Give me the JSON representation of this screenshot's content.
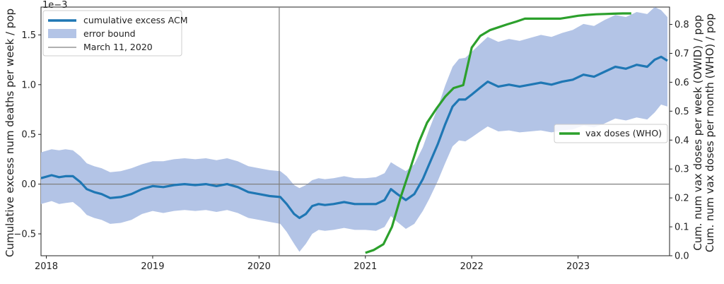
{
  "chart_data": {
    "type": "line",
    "colors": {
      "excess": "#1f77b4",
      "band": "#b3c4e6",
      "vax": "#2ca02c",
      "reference": "#808080"
    },
    "x_axis": {
      "ticks": [
        2018,
        2019,
        2020,
        2021,
        2022,
        2023
      ],
      "tick_labels": [
        "2018",
        "2019",
        "2020",
        "2021",
        "2022",
        "2023"
      ],
      "range": [
        2017.95,
        2023.86
      ]
    },
    "y_axis_left": {
      "label": "Cumulative excess num deaths per week / pop",
      "scale_label": "1e−3",
      "range": [
        -0.72,
        1.78
      ],
      "ticks": [
        -0.5,
        0.0,
        0.5,
        1.0,
        1.5
      ],
      "tick_labels": [
        "−0.5",
        "0.0",
        "0.5",
        "1.0",
        "1.5"
      ]
    },
    "y_axis_right": {
      "label_line1": "Cum. num vax doses per week (OWID) / pop",
      "label_line2": "Cum. num vax doses per month (WHO) / pop",
      "range": [
        0.0,
        0.86
      ],
      "ticks": [
        0.0,
        0.1,
        0.2,
        0.3,
        0.4,
        0.5,
        0.6,
        0.7,
        0.8
      ],
      "tick_labels": [
        "0.0",
        "0.1",
        "0.2",
        "0.3",
        "0.4",
        "0.5",
        "0.6",
        "0.7",
        "0.8"
      ]
    },
    "zero_line": 0,
    "reference_line": {
      "x": 2020.19,
      "label": "March 11, 2020"
    },
    "legend_left": {
      "placement": "top-left",
      "entries": [
        "cumulative excess ACM",
        "error bound",
        "March 11, 2020"
      ]
    },
    "legend_right": {
      "placement": "center-right",
      "entries": [
        "vax doses (WHO)"
      ]
    },
    "series": [
      {
        "name": "cumulative excess ACM",
        "axis": "left",
        "x": [
          2017.95,
          2018.05,
          2018.12,
          2018.18,
          2018.25,
          2018.32,
          2018.38,
          2018.45,
          2018.52,
          2018.6,
          2018.7,
          2018.8,
          2018.9,
          2019.0,
          2019.1,
          2019.2,
          2019.3,
          2019.4,
          2019.5,
          2019.6,
          2019.7,
          2019.8,
          2019.9,
          2020.0,
          2020.1,
          2020.2,
          2020.26,
          2020.33,
          2020.38,
          2020.44,
          2020.5,
          2020.56,
          2020.62,
          2020.7,
          2020.8,
          2020.9,
          2021.0,
          2021.1,
          2021.18,
          2021.24,
          2021.3,
          2021.38,
          2021.46,
          2021.54,
          2021.6,
          2021.68,
          2021.75,
          2021.82,
          2021.88,
          2021.94,
          2022.0,
          2022.08,
          2022.15,
          2022.25,
          2022.35,
          2022.45,
          2022.55,
          2022.65,
          2022.75,
          2022.85,
          2022.95,
          2023.05,
          2023.15,
          2023.25,
          2023.35,
          2023.45,
          2023.55,
          2023.65,
          2023.72,
          2023.78,
          2023.84
        ],
        "y": [
          0.06,
          0.09,
          0.07,
          0.08,
          0.08,
          0.02,
          -0.05,
          -0.08,
          -0.1,
          -0.14,
          -0.13,
          -0.1,
          -0.05,
          -0.02,
          -0.03,
          -0.01,
          0.0,
          -0.01,
          0.0,
          -0.02,
          0.0,
          -0.03,
          -0.08,
          -0.1,
          -0.12,
          -0.13,
          -0.2,
          -0.3,
          -0.34,
          -0.3,
          -0.22,
          -0.2,
          -0.21,
          -0.2,
          -0.18,
          -0.2,
          -0.2,
          -0.2,
          -0.16,
          -0.05,
          -0.1,
          -0.16,
          -0.1,
          0.05,
          0.2,
          0.4,
          0.6,
          0.78,
          0.85,
          0.85,
          0.9,
          0.97,
          1.03,
          0.98,
          1.0,
          0.98,
          1.0,
          1.02,
          1.0,
          1.03,
          1.05,
          1.1,
          1.08,
          1.13,
          1.18,
          1.16,
          1.2,
          1.18,
          1.25,
          1.28,
          1.24
        ]
      },
      {
        "name": "error bound",
        "axis": "left",
        "x": [
          2017.95,
          2018.05,
          2018.12,
          2018.18,
          2018.25,
          2018.32,
          2018.38,
          2018.45,
          2018.52,
          2018.6,
          2018.7,
          2018.8,
          2018.9,
          2019.0,
          2019.1,
          2019.2,
          2019.3,
          2019.4,
          2019.5,
          2019.6,
          2019.7,
          2019.8,
          2019.9,
          2020.0,
          2020.1,
          2020.2,
          2020.26,
          2020.33,
          2020.38,
          2020.44,
          2020.5,
          2020.56,
          2020.62,
          2020.7,
          2020.8,
          2020.9,
          2021.0,
          2021.1,
          2021.18,
          2021.24,
          2021.3,
          2021.38,
          2021.46,
          2021.54,
          2021.6,
          2021.68,
          2021.75,
          2021.82,
          2021.88,
          2021.94,
          2022.0,
          2022.08,
          2022.15,
          2022.25,
          2022.35,
          2022.45,
          2022.55,
          2022.65,
          2022.75,
          2022.85,
          2022.95,
          2023.05,
          2023.15,
          2023.25,
          2023.35,
          2023.45,
          2023.55,
          2023.65,
          2023.72,
          2023.78,
          2023.84
        ],
        "upper": [
          0.32,
          0.35,
          0.34,
          0.35,
          0.34,
          0.28,
          0.21,
          0.18,
          0.16,
          0.12,
          0.13,
          0.16,
          0.2,
          0.23,
          0.23,
          0.25,
          0.26,
          0.25,
          0.26,
          0.24,
          0.26,
          0.23,
          0.18,
          0.16,
          0.14,
          0.13,
          0.08,
          -0.01,
          -0.04,
          -0.01,
          0.04,
          0.06,
          0.05,
          0.06,
          0.08,
          0.06,
          0.06,
          0.07,
          0.11,
          0.22,
          0.18,
          0.13,
          0.2,
          0.37,
          0.55,
          0.77,
          0.99,
          1.18,
          1.26,
          1.27,
          1.33,
          1.41,
          1.48,
          1.43,
          1.46,
          1.44,
          1.47,
          1.5,
          1.48,
          1.52,
          1.55,
          1.61,
          1.59,
          1.65,
          1.7,
          1.68,
          1.73,
          1.71,
          1.78,
          1.75,
          1.68
        ],
        "lower": [
          -0.2,
          -0.17,
          -0.2,
          -0.19,
          -0.18,
          -0.24,
          -0.31,
          -0.34,
          -0.36,
          -0.4,
          -0.39,
          -0.36,
          -0.3,
          -0.27,
          -0.29,
          -0.27,
          -0.26,
          -0.27,
          -0.26,
          -0.28,
          -0.26,
          -0.29,
          -0.34,
          -0.36,
          -0.38,
          -0.4,
          -0.48,
          -0.6,
          -0.68,
          -0.6,
          -0.5,
          -0.46,
          -0.47,
          -0.46,
          -0.44,
          -0.46,
          -0.46,
          -0.47,
          -0.43,
          -0.32,
          -0.38,
          -0.45,
          -0.4,
          -0.27,
          -0.15,
          0.03,
          0.21,
          0.38,
          0.44,
          0.43,
          0.47,
          0.53,
          0.58,
          0.53,
          0.54,
          0.52,
          0.53,
          0.54,
          0.52,
          0.54,
          0.55,
          0.59,
          0.57,
          0.61,
          0.66,
          0.64,
          0.67,
          0.65,
          0.72,
          0.8,
          0.78
        ]
      },
      {
        "name": "vax doses (WHO)",
        "axis": "right",
        "x": [
          2021.0,
          2021.08,
          2021.17,
          2021.25,
          2021.33,
          2021.42,
          2021.5,
          2021.58,
          2021.67,
          2021.75,
          2021.83,
          2021.92,
          2022.0,
          2022.08,
          2022.17,
          2022.25,
          2022.33,
          2022.42,
          2022.5,
          2022.58,
          2022.67,
          2022.75,
          2022.83,
          2022.92,
          2023.0,
          2023.08,
          2023.17,
          2023.25,
          2023.33,
          2023.42,
          2023.5
        ],
        "y": [
          0.01,
          0.02,
          0.04,
          0.1,
          0.2,
          0.3,
          0.39,
          0.46,
          0.51,
          0.55,
          0.58,
          0.59,
          0.72,
          0.76,
          0.78,
          0.79,
          0.8,
          0.81,
          0.82,
          0.82,
          0.82,
          0.82,
          0.82,
          0.825,
          0.83,
          0.833,
          0.835,
          0.836,
          0.837,
          0.838,
          0.838
        ]
      }
    ]
  }
}
